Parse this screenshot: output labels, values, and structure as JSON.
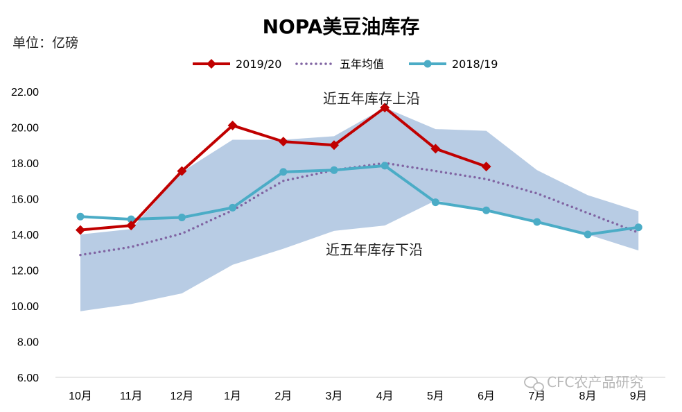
{
  "chart_data": {
    "type": "line",
    "title": "NOPA美豆油库存",
    "unit_label": "单位：亿磅",
    "categories": [
      "10月",
      "11月",
      "12月",
      "1月",
      "2月",
      "3月",
      "4月",
      "5月",
      "6月",
      "7月",
      "8月",
      "9月"
    ],
    "ylim": [
      6,
      22
    ],
    "yticks": [
      "6.00",
      "8.00",
      "10.00",
      "12.00",
      "14.00",
      "16.00",
      "18.00",
      "20.00",
      "22.00"
    ],
    "grid": false,
    "legend_position": "top",
    "band": {
      "upper_label": "近五年库存上沿",
      "lower_label": "近五年库存下沿",
      "color": "#b8cce4",
      "upper": [
        14.0,
        14.3,
        17.5,
        19.3,
        19.3,
        19.5,
        21.1,
        19.9,
        19.8,
        17.6,
        16.2,
        15.3
      ],
      "lower": [
        9.7,
        10.1,
        10.7,
        12.3,
        13.2,
        14.2,
        14.5,
        15.9,
        15.4,
        14.7,
        14.0,
        13.1
      ]
    },
    "series": [
      {
        "name": "2019/20",
        "color": "#c00000",
        "marker": "diamond",
        "style": "solid",
        "values": [
          14.25,
          14.5,
          17.55,
          20.1,
          19.2,
          19.0,
          21.1,
          18.8,
          17.8,
          null,
          null,
          null
        ]
      },
      {
        "name": "五年均值",
        "color": "#8064a2",
        "marker": "none",
        "style": "dotted",
        "values": [
          12.85,
          13.3,
          14.05,
          15.35,
          17.0,
          17.6,
          18.0,
          17.55,
          17.1,
          16.3,
          15.2,
          14.1
        ]
      },
      {
        "name": "2018/19",
        "color": "#4bacc6",
        "marker": "circle",
        "style": "solid",
        "values": [
          15.0,
          14.85,
          14.95,
          15.5,
          17.5,
          17.6,
          17.85,
          15.8,
          15.35,
          14.7,
          14.0,
          14.4
        ]
      }
    ]
  },
  "watermark": "CFC农产品研究"
}
